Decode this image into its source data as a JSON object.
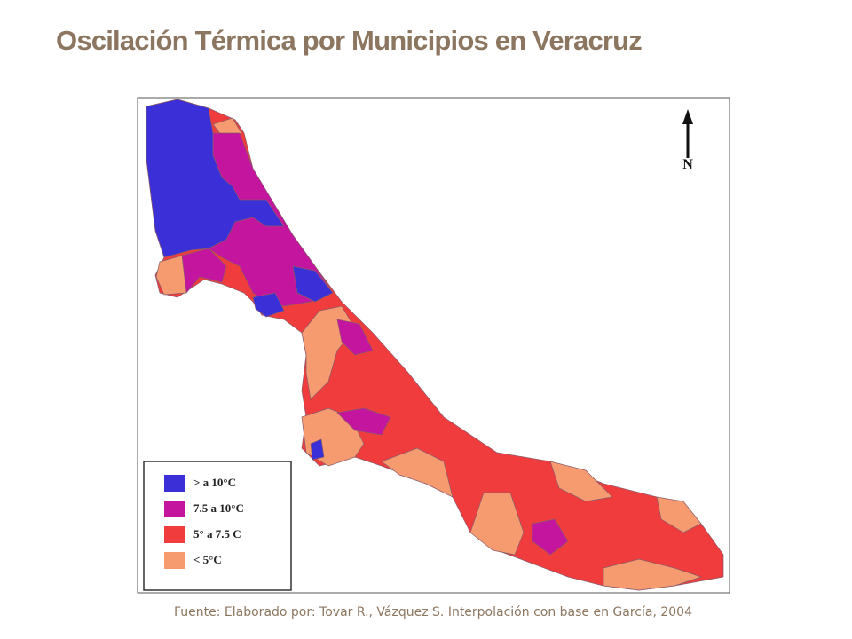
{
  "title": "Oscilación Térmica por  Municipios en Veracruz",
  "map": {
    "north_label": "N",
    "legend": [
      {
        "label": "> a 10°C",
        "color": "#3b2fd8"
      },
      {
        "label": "7.5 a 10°C",
        "color": "#c4159f"
      },
      {
        "label": "5° a 7.5 C",
        "color": "#f03c3c"
      },
      {
        "label": "< 5°C",
        "color": "#f59b6f"
      }
    ]
  },
  "source": "Fuente: Elaborado por: Tovar R., Vázquez S. Interpolación con base en García, 2004"
}
